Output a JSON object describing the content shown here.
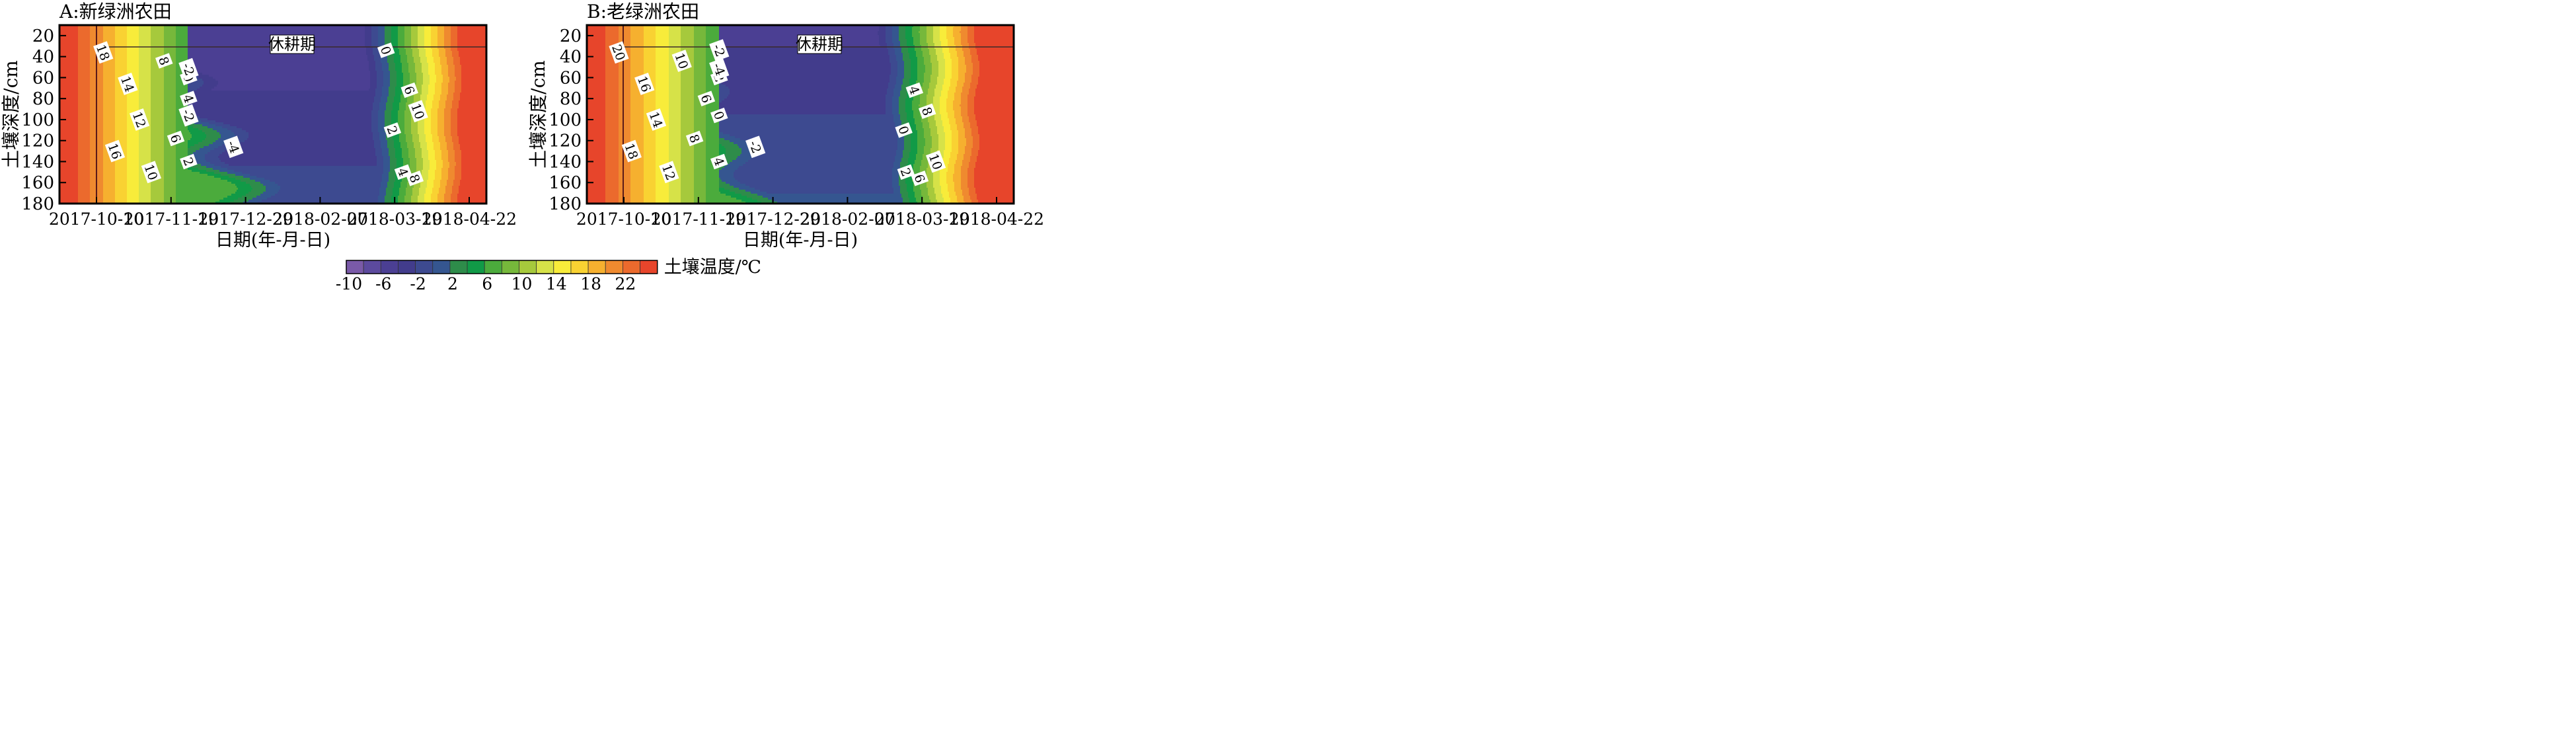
{
  "chart_data": [
    {
      "type": "heatmap",
      "panel": "A",
      "title": "A:新绿洲农田",
      "xlabel": "日期(年-月-日)",
      "ylabel": "土壤深度/cm",
      "x_ticks": [
        "2017-10-10",
        "2017-11-19",
        "2017-12-29",
        "2018-02-07",
        "2018-03-19",
        "2018-04-22"
      ],
      "y_ticks": [
        20,
        40,
        60,
        80,
        100,
        120,
        140,
        160,
        180
      ],
      "ylim": [
        10,
        180
      ],
      "y_inverted": true,
      "annotation": "休耕期",
      "fallow_period": [
        "2017-10-10",
        "2018-04-22"
      ],
      "contour_labels": [
        "18",
        "16",
        "14",
        "12",
        "10",
        "8",
        "6",
        "4",
        "2",
        "0",
        "-2",
        "-4",
        "-2",
        "0",
        "2",
        "4",
        "6",
        "8",
        "10"
      ]
    },
    {
      "type": "heatmap",
      "panel": "B",
      "title": "B:老绿洲农田",
      "xlabel": "日期(年-月-日)",
      "ylabel": "土壤深度/cm",
      "x_ticks": [
        "2017-10-10",
        "2017-11-19",
        "2017-12-29",
        "2018-02-07",
        "2018-03-19",
        "2018-04-22"
      ],
      "y_ticks": [
        20,
        40,
        60,
        80,
        100,
        120,
        140,
        160,
        180
      ],
      "ylim": [
        10,
        180
      ],
      "y_inverted": true,
      "annotation": "休耕期",
      "fallow_period": [
        "2017-10-10",
        "2018-04-22"
      ],
      "contour_labels": [
        "20",
        "18",
        "16",
        "14",
        "12",
        "10",
        "8",
        "6",
        "4",
        "2",
        "0",
        "-2",
        "-4",
        "-2",
        "0",
        "2",
        "4",
        "6",
        "8",
        "10"
      ]
    }
  ],
  "colorbar": {
    "label": "土壤温度/℃",
    "tick_labels": [
      "-10",
      "-6",
      "-2",
      "2",
      "6",
      "10",
      "14",
      "18",
      "22"
    ],
    "levels": [
      -10,
      -8,
      -6,
      -4,
      -2,
      0,
      2,
      4,
      6,
      8,
      10,
      12,
      14,
      16,
      18,
      20,
      22
    ],
    "colors": [
      "#7a5aa8",
      "#5c4a9e",
      "#4b3f93",
      "#423c8c",
      "#3d4a90",
      "#355690",
      "#2e8c4a",
      "#119a47",
      "#4bab3c",
      "#76b83b",
      "#a6c93c",
      "#d6e248",
      "#f8ec3a",
      "#f9d232",
      "#f6b02f",
      "#ef8a2f",
      "#eb6a2d",
      "#e7452b"
    ]
  }
}
